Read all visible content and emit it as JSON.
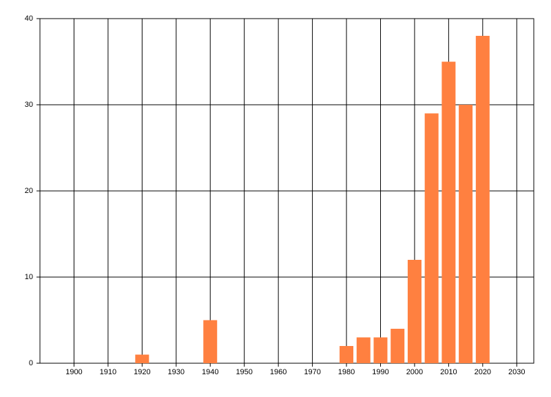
{
  "chart_data": {
    "type": "bar",
    "x": [
      1920,
      1940,
      1980,
      1985,
      1990,
      1995,
      2000,
      2005,
      2010,
      2015,
      2020
    ],
    "values": [
      1,
      5,
      2,
      3,
      3,
      4,
      12,
      29,
      35,
      30,
      38
    ],
    "color": "#ff8040",
    "xlim": [
      1890,
      2035
    ],
    "xticks": [
      1900,
      1910,
      1920,
      1930,
      1940,
      1950,
      1960,
      1970,
      1980,
      1990,
      2000,
      2010,
      2020,
      2030
    ],
    "ylim": [
      0,
      40
    ],
    "yticks": [
      0,
      10,
      20,
      30,
      40
    ],
    "grid": true
  }
}
